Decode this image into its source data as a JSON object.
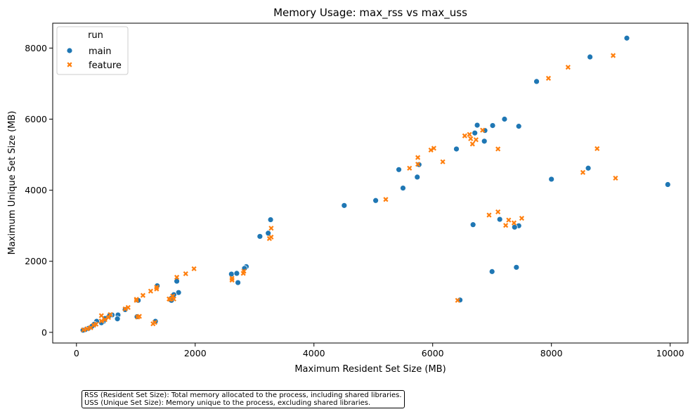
{
  "colors": {
    "main": "#1f77b4",
    "feature": "#ff7f0e"
  },
  "note": {
    "line1": "RSS (Resident Set Size): Total memory allocated to the process, including shared libraries.",
    "line2": "USS (Unique Set Size): Memory unique to the process, excluding shared libraries."
  },
  "chart_data": {
    "type": "scatter",
    "title": "Memory Usage: max_rss vs max_uss",
    "xlabel": "Maximum Resident Set Size (MB)",
    "ylabel": "Maximum Unique Set Size (MB)",
    "xlim": [
      -400,
      10300
    ],
    "ylim": [
      -300,
      8700
    ],
    "xticks": [
      0,
      2000,
      4000,
      6000,
      8000,
      10000
    ],
    "yticks": [
      0,
      2000,
      4000,
      6000,
      8000
    ],
    "grid": false,
    "legend": {
      "title": "run",
      "position": "top-left"
    },
    "series": [
      {
        "name": "main",
        "marker": "circle",
        "points": [
          [
            9270,
            8280
          ],
          [
            8650,
            7750
          ],
          [
            7750,
            7060
          ],
          [
            7210,
            6000
          ],
          [
            7010,
            5820
          ],
          [
            6750,
            5830
          ],
          [
            7450,
            5800
          ],
          [
            6880,
            5680
          ],
          [
            6710,
            5610
          ],
          [
            6870,
            5380
          ],
          [
            6400,
            5160
          ],
          [
            5770,
            4720
          ],
          [
            5430,
            4580
          ],
          [
            5740,
            4370
          ],
          [
            5500,
            4060
          ],
          [
            8620,
            4620
          ],
          [
            8000,
            4310
          ],
          [
            9960,
            4160
          ],
          [
            4510,
            3570
          ],
          [
            5040,
            3710
          ],
          [
            3270,
            3170
          ],
          [
            3230,
            2790
          ],
          [
            3090,
            2700
          ],
          [
            7130,
            3180
          ],
          [
            6680,
            3030
          ],
          [
            7450,
            3000
          ],
          [
            7380,
            2960
          ],
          [
            2860,
            1850
          ],
          [
            2830,
            1800
          ],
          [
            2610,
            1640
          ],
          [
            2700,
            1660
          ],
          [
            2720,
            1400
          ],
          [
            7000,
            1710
          ],
          [
            7410,
            1830
          ],
          [
            1360,
            1310
          ],
          [
            1720,
            1120
          ],
          [
            1690,
            1440
          ],
          [
            1640,
            1060
          ],
          [
            1600,
            960
          ],
          [
            1600,
            900
          ],
          [
            1040,
            900
          ],
          [
            1020,
            440
          ],
          [
            1330,
            310
          ],
          [
            830,
            650
          ],
          [
            820,
            640
          ],
          [
            700,
            490
          ],
          [
            600,
            490
          ],
          [
            560,
            480
          ],
          [
            480,
            390
          ],
          [
            690,
            380
          ],
          [
            450,
            300
          ],
          [
            420,
            270
          ],
          [
            340,
            310
          ],
          [
            300,
            230
          ],
          [
            260,
            170
          ],
          [
            200,
            110
          ],
          [
            150,
            80
          ],
          [
            110,
            60
          ],
          [
            6460,
            910
          ]
        ]
      },
      {
        "name": "feature",
        "marker": "x",
        "points": [
          [
            9040,
            7790
          ],
          [
            8280,
            7460
          ],
          [
            7950,
            7150
          ],
          [
            6840,
            5690
          ],
          [
            6540,
            5530
          ],
          [
            6620,
            5570
          ],
          [
            6640,
            5450
          ],
          [
            6730,
            5420
          ],
          [
            6670,
            5300
          ],
          [
            6020,
            5180
          ],
          [
            5970,
            5130
          ],
          [
            7100,
            5160
          ],
          [
            8770,
            5170
          ],
          [
            5750,
            4920
          ],
          [
            5750,
            4730
          ],
          [
            6170,
            4800
          ],
          [
            5610,
            4620
          ],
          [
            8530,
            4500
          ],
          [
            9080,
            4340
          ],
          [
            5210,
            3740
          ],
          [
            7100,
            3390
          ],
          [
            6950,
            3300
          ],
          [
            7500,
            3210
          ],
          [
            7280,
            3160
          ],
          [
            7370,
            3080
          ],
          [
            7230,
            3010
          ],
          [
            3280,
            2930
          ],
          [
            3280,
            2680
          ],
          [
            3250,
            2640
          ],
          [
            2820,
            1720
          ],
          [
            2810,
            1660
          ],
          [
            2620,
            1520
          ],
          [
            2620,
            1470
          ],
          [
            1980,
            1790
          ],
          [
            1840,
            1650
          ],
          [
            1690,
            1550
          ],
          [
            1350,
            1270
          ],
          [
            1350,
            1220
          ],
          [
            1250,
            1160
          ],
          [
            1120,
            1040
          ],
          [
            1010,
            930
          ],
          [
            1010,
            900
          ],
          [
            1060,
            450
          ],
          [
            1030,
            430
          ],
          [
            1320,
            280
          ],
          [
            1290,
            240
          ],
          [
            1620,
            1020
          ],
          [
            1560,
            940
          ],
          [
            1640,
            940
          ],
          [
            1580,
            930
          ],
          [
            870,
            700
          ],
          [
            820,
            660
          ],
          [
            570,
            500
          ],
          [
            540,
            420
          ],
          [
            420,
            470
          ],
          [
            480,
            360
          ],
          [
            420,
            320
          ],
          [
            330,
            230
          ],
          [
            290,
            200
          ],
          [
            240,
            130
          ],
          [
            180,
            100
          ],
          [
            120,
            70
          ],
          [
            6420,
            900
          ]
        ]
      }
    ]
  }
}
